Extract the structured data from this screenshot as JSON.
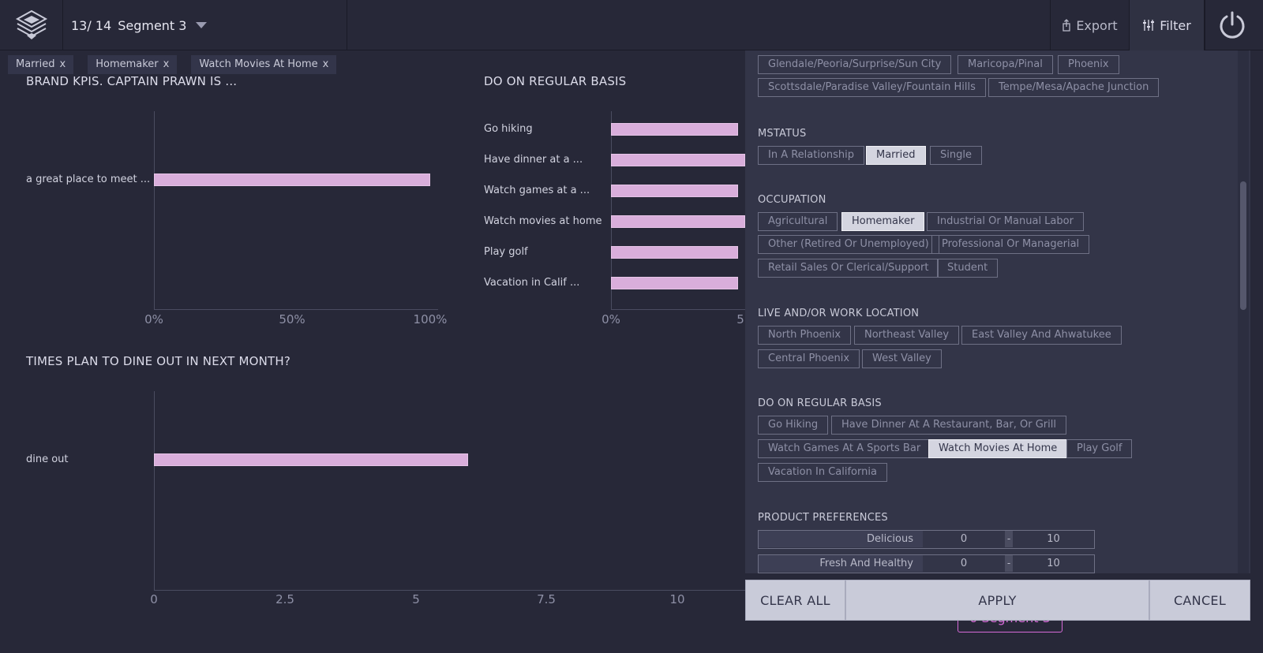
{
  "header": {
    "segment_count": "13/ 14",
    "segment_name": "Segment 3",
    "export_label": "Export",
    "filter_label": "Filter"
  },
  "active_filters": [
    {
      "label": "Married",
      "close": "x"
    },
    {
      "label": "Homemaker",
      "close": "x"
    },
    {
      "label": "Watch Movies At Home",
      "close": "x"
    }
  ],
  "charts": {
    "brand_kpis": {
      "title": "BRAND KPIS. CAPTAIN PRAWN IS ...",
      "categories": [
        "a great place to meet ..."
      ],
      "values_pct": [
        100
      ],
      "ticks": [
        "0%",
        "50%",
        "100%"
      ]
    },
    "regular_basis": {
      "title": "DO ON REGULAR BASIS",
      "categories": [
        "Go hiking",
        "Have dinner at a ...",
        "Watch games at a ...",
        "Watch movies at home",
        "Play golf",
        "Vacation in Calif ..."
      ],
      "ticks": [
        "0%",
        "5"
      ]
    },
    "dine_out": {
      "title": "TIMES PLAN TO DINE OUT IN NEXT MONTH?",
      "categories": [
        "dine out"
      ],
      "values": [
        6
      ],
      "ticks": [
        "0",
        "2.5",
        "5",
        "7.5",
        "10"
      ]
    }
  },
  "chart_data": [
    {
      "type": "bar",
      "title": "BRAND KPIS. CAPTAIN PRAWN IS ...",
      "categories": [
        "a great place to meet ..."
      ],
      "values": [
        100
      ],
      "xlim": [
        0,
        100
      ],
      "xticks": [
        "0%",
        "50%",
        "100%"
      ]
    },
    {
      "type": "bar",
      "title": "DO ON REGULAR BASIS",
      "categories": [
        "Go hiking",
        "Have dinner at a ...",
        "Watch games at a ...",
        "Watch movies at home",
        "Play golf",
        "Vacation in Calif ..."
      ],
      "values": [
        50,
        55,
        50,
        55,
        50,
        50
      ],
      "xticks": [
        "0%",
        "5"
      ]
    },
    {
      "type": "bar",
      "title": "TIMES PLAN TO DINE OUT IN NEXT MONTH?",
      "categories": [
        "dine out"
      ],
      "values": [
        6
      ],
      "xlim": [
        0,
        12.5
      ],
      "xticks": [
        "0",
        "2.5",
        "5",
        "7.5",
        "10"
      ]
    }
  ],
  "floating_segment_label": "0 Segment 3",
  "filter_panel": {
    "locations": [
      "Glendale/Peoria/Surprise/Sun City",
      "Maricopa/Pinal",
      "Phoenix",
      "Scottsdale/Paradise Valley/Fountain Hills",
      "Tempe/Mesa/Apache Junction"
    ],
    "mstatus": {
      "title": "MSTATUS",
      "options": [
        "In A Relationship",
        "Married",
        "Single"
      ]
    },
    "occupation": {
      "title": "OCCUPATION",
      "options": [
        "Agricultural",
        "Homemaker",
        "Industrial Or Manual Labor",
        "Other (Retired Or Unemployed)",
        "Professional Or Managerial",
        "Retail Sales Or Clerical/Support",
        "Student"
      ]
    },
    "live_work": {
      "title": "LIVE AND/OR WORK LOCATION",
      "options": [
        "North Phoenix",
        "Northeast Valley",
        "East Valley And Ahwatukee",
        "Central Phoenix",
        "West Valley"
      ]
    },
    "regular_basis": {
      "title": "DO ON REGULAR BASIS",
      "options": [
        "Go Hiking",
        "Have Dinner At A Restaurant, Bar, Or Grill",
        "Watch Games At A Sports Bar",
        "Watch Movies At Home",
        "Play Golf",
        "Vacation In California"
      ]
    },
    "product_prefs": {
      "title": "PRODUCT PREFERENCES",
      "rows": [
        {
          "label": "Delicious",
          "min": "0",
          "sep": "-",
          "max": "10"
        },
        {
          "label": "Fresh And Healthy",
          "min": "0",
          "sep": "-",
          "max": "10"
        }
      ]
    },
    "selected": [
      "Married",
      "Homemaker",
      "Watch Movies At Home"
    ]
  },
  "actions": {
    "clear_all": "CLEAR ALL",
    "apply": "APPLY",
    "cancel": "CANCEL"
  }
}
